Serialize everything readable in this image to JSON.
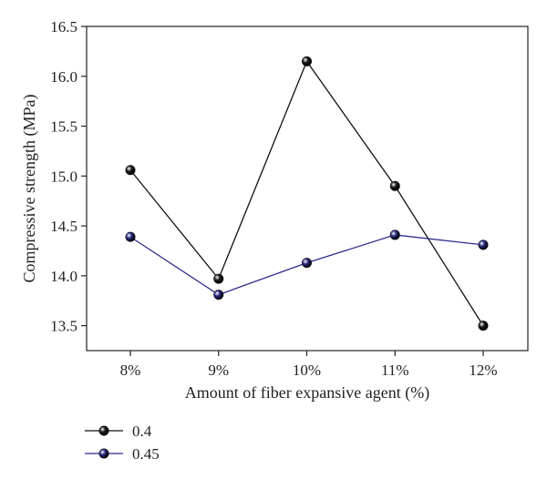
{
  "chart_data": {
    "type": "line",
    "categories": [
      "8%",
      "9%",
      "10%",
      "11%",
      "12%"
    ],
    "series": [
      {
        "name": "0.4",
        "values": [
          15.06,
          13.97,
          16.15,
          14.9,
          13.5
        ],
        "color": "#111111",
        "marker_color": "#1a1a1a"
      },
      {
        "name": "0.45",
        "values": [
          14.39,
          13.81,
          14.13,
          14.41,
          14.31
        ],
        "color": "#2d2a8c",
        "marker_color": "#2a2a86"
      }
    ],
    "xlabel": "Amount of fiber expansive agent (%)",
    "ylabel": "Compressive strength (MPa)",
    "ylim": [
      13.25,
      16.5
    ],
    "yticks": [
      "13.5",
      "14.0",
      "14.5",
      "15.0",
      "15.5",
      "16.0",
      "16.5"
    ],
    "grid": false,
    "legend_position": "bottom-left"
  }
}
